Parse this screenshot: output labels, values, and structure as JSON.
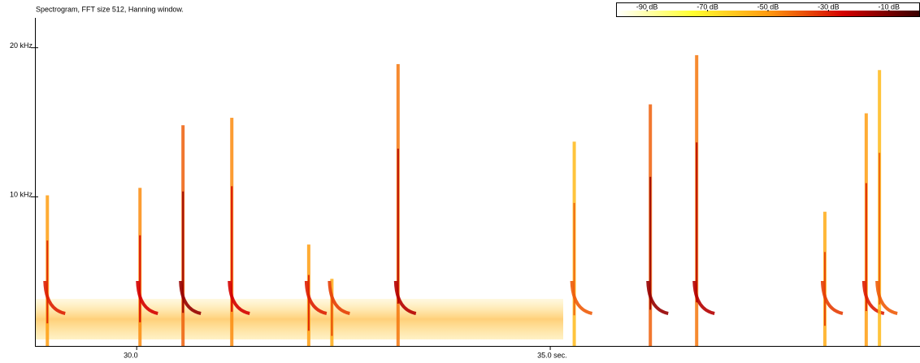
{
  "chart_data": {
    "type": "spectrogram",
    "title": "Spectrogram, FFT size 512, Hanning window.",
    "x": [
      28.92,
      30.04,
      30.56,
      31.15,
      32.08,
      32.36,
      33.16,
      35.29,
      36.21,
      36.77,
      38.32,
      38.82,
      38.98
    ],
    "values": [
      10.1,
      10.6,
      14.8,
      15.3,
      6.8,
      4.5,
      18.9,
      13.7,
      16.2,
      19.5,
      9,
      15.6,
      18.5
    ],
    "intensity": [
      -30,
      -25,
      -15,
      -25,
      -30,
      -35,
      -20,
      -40,
      -15,
      -20,
      -35,
      -30,
      -40
    ],
    "xlim": [
      28.77,
      39.47
    ],
    "xticks": [
      {
        "value": 30,
        "label": "30.0"
      },
      {
        "value": 35,
        "label": "35.0 sec."
      }
    ],
    "ylim": [
      0,
      22
    ],
    "yticks": [
      {
        "value": 10,
        "label": "10 kHz"
      },
      {
        "value": 20,
        "label": "20 kHz"
      }
    ],
    "clim": [
      -100,
      0
    ],
    "cticks": [
      {
        "value": -90,
        "label": "-90 dB"
      },
      {
        "value": -70,
        "label": "-70 dB"
      },
      {
        "value": -50,
        "label": "-50 dB"
      },
      {
        "value": -30,
        "label": "-30 dB"
      },
      {
        "value": -10,
        "label": "-10 dB"
      }
    ],
    "colormap": [
      "#ffffff",
      "#ffff30",
      "#ff9a10",
      "#d40000",
      "#3a0000"
    ]
  }
}
